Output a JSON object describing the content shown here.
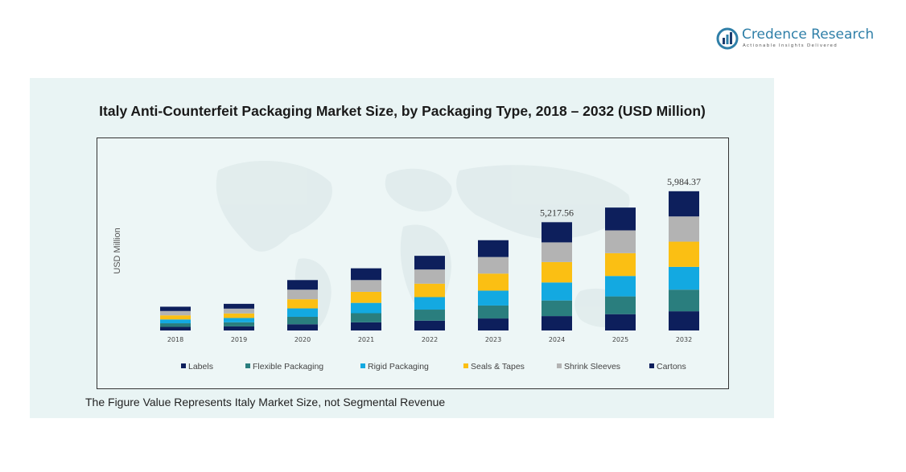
{
  "brand": {
    "name": "Credence Research",
    "tagline": "Actionable Insights Delivered",
    "colors": {
      "primary": "#2f7fa8",
      "accent": "#1b3c6e"
    }
  },
  "footnote": "The Figure Value Represents Italy Market Size, not Segmental Revenue",
  "chart_data": {
    "type": "bar",
    "stacked": true,
    "title": "Italy Anti-Counterfeit Packaging Market Size, by Packaging Type, 2018 – 2032 (USD Million)",
    "xlabel": "",
    "ylabel": "USD Million",
    "ylim": [
      0,
      7000
    ],
    "grid": false,
    "legend_position": "bottom",
    "categories": [
      "2018",
      "2019",
      "2020",
      "2021",
      "2022",
      "2023",
      "2024",
      "2025",
      "2032"
    ],
    "annotations": [
      {
        "category": "2024",
        "text": "5,217.56"
      },
      {
        "category": "2032",
        "text": "5,984.37"
      }
    ],
    "series": [
      {
        "name": "Labels",
        "color": "#0d1f5c",
        "values": [
          150,
          170,
          260,
          340,
          410,
          500,
          600,
          680,
          800
        ]
      },
      {
        "name": "Flexible Packaging",
        "color": "#2a7e7e",
        "values": [
          150,
          170,
          310,
          380,
          460,
          540,
          650,
          740,
          900
        ]
      },
      {
        "name": "Rigid Packaging",
        "color": "#13a9e1",
        "values": [
          160,
          180,
          350,
          430,
          520,
          620,
          750,
          850,
          950
        ]
      },
      {
        "name": "Seals & Tapes",
        "color": "#fbbf13",
        "values": [
          170,
          190,
          380,
          460,
          560,
          710,
          850,
          950,
          1050
        ]
      },
      {
        "name": "Shrink Sleeves",
        "color": "#b3b3b3",
        "values": [
          180,
          200,
          400,
          490,
          590,
          690,
          820,
          950,
          1050
        ]
      },
      {
        "name": "Cartons",
        "color": "#0d1f5c",
        "values": [
          180,
          200,
          400,
          490,
          570,
          700,
          840,
          950,
          1050
        ]
      }
    ]
  }
}
